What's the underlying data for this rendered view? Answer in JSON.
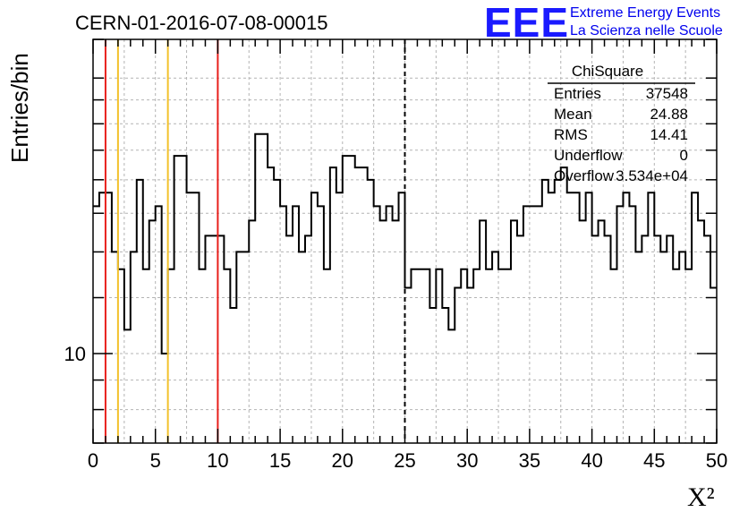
{
  "header": {
    "title": "CERN-01-2016-07-08-00015",
    "logo": "EEE",
    "logo_line1": "Extreme Energy Events",
    "logo_line2": "La Scienza nelle Scuole"
  },
  "stats": {
    "title": "ChiSquare",
    "rows": [
      {
        "label": "Entries",
        "value": "37548"
      },
      {
        "label": "Mean",
        "value": "24.88"
      },
      {
        "label": "RMS",
        "value": "14.41"
      },
      {
        "label": "Underflow",
        "value": "0"
      },
      {
        "label": "Overflow",
        "value": "3.534e+04"
      }
    ]
  },
  "chart_data": {
    "type": "histogram",
    "ylabel": "Entries/bin",
    "xlabel": "X²",
    "xlim": [
      0,
      50
    ],
    "ylim": [
      7,
      35
    ],
    "yscale": "log",
    "grid": true,
    "bin_width": 0.5,
    "x_ticks": [
      0,
      5,
      10,
      15,
      20,
      25,
      30,
      35,
      40,
      45,
      50
    ],
    "y_ticks_labeled": [
      10
    ],
    "y_tick_labels": [
      "10"
    ],
    "counts": [
      18,
      19,
      19,
      15,
      14,
      11,
      15,
      20,
      14,
      17,
      18,
      10,
      14,
      22,
      22,
      19,
      19,
      14,
      16,
      16,
      16,
      14,
      12,
      15,
      15,
      17,
      24,
      24,
      21,
      20,
      18,
      16,
      18,
      15,
      16,
      19,
      18,
      14,
      21,
      19,
      22,
      22,
      21,
      21,
      20,
      18,
      17,
      18,
      17,
      19,
      13,
      14,
      14,
      14,
      12,
      14,
      12,
      11,
      13,
      14,
      13,
      14,
      17,
      14,
      15,
      14,
      14,
      17,
      16,
      18,
      18,
      18,
      20,
      19,
      20,
      21,
      19,
      19,
      17,
      19,
      16,
      17,
      16,
      14,
      18,
      19,
      18,
      15,
      16,
      19,
      16,
      15,
      16,
      14,
      15,
      14,
      19,
      17,
      16,
      13
    ],
    "vertical_lines": [
      {
        "x": 1,
        "color": "#e8201c",
        "style": "solid"
      },
      {
        "x": 2,
        "color": "#f2c12b",
        "style": "solid"
      },
      {
        "x": 6,
        "color": "#f2c12b",
        "style": "solid"
      },
      {
        "x": 10,
        "color": "#e8201c",
        "style": "solid"
      },
      {
        "x": 25,
        "color": "#000000",
        "style": "dashed"
      }
    ]
  }
}
